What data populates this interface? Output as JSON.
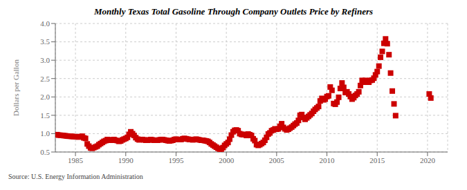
{
  "chart_data": {
    "type": "scatter",
    "title": "Monthly Texas Total Gasoline Through Company Outlets Price by Refiners",
    "y_label": "Dollars per Gallon",
    "annotations": [
      "Source: U.S. Energy Information Administration"
    ],
    "color": "#cc0000",
    "marker": "square",
    "grid": true,
    "xlim": [
      1983,
      2022
    ],
    "ylim": [
      0.5,
      4.0
    ],
    "xticks": [
      1985,
      1990,
      1995,
      2000,
      2005,
      2010,
      2015,
      2020
    ],
    "yticks": [
      0.5,
      {
        "value": 1.0,
        "label": "1.0"
      },
      1.5,
      {
        "value": 2.0,
        "label": "2.0"
      },
      2.5,
      {
        "value": 3.0,
        "label": "3.0"
      },
      3.5,
      {
        "value": 4.0,
        "label": "4.0"
      }
    ],
    "x": [
      1983.17,
      1983.33,
      1983.5,
      1983.67,
      1983.83,
      1984.0,
      1984.17,
      1984.33,
      1984.5,
      1984.67,
      1984.83,
      1985.0,
      1985.17,
      1985.33,
      1985.5,
      1985.67,
      1985.83,
      1986.0,
      1986.17,
      1986.33,
      1986.5,
      1986.67,
      1986.83,
      1987.0,
      1987.17,
      1987.33,
      1987.5,
      1987.67,
      1987.83,
      1988.0,
      1988.17,
      1988.33,
      1988.5,
      1988.67,
      1988.83,
      1989.0,
      1989.17,
      1989.33,
      1989.5,
      1989.67,
      1989.83,
      1990.0,
      1990.17,
      1990.33,
      1990.5,
      1990.67,
      1990.83,
      1991.0,
      1991.17,
      1991.33,
      1991.5,
      1991.67,
      1991.83,
      1992.0,
      1992.17,
      1992.33,
      1992.5,
      1992.67,
      1992.83,
      1993.0,
      1993.17,
      1993.33,
      1993.5,
      1993.67,
      1993.83,
      1994.0,
      1994.17,
      1994.33,
      1994.5,
      1994.67,
      1994.83,
      1995.0,
      1995.17,
      1995.33,
      1995.5,
      1995.67,
      1995.83,
      1996.0,
      1996.17,
      1996.33,
      1996.5,
      1996.67,
      1996.83,
      1997.0,
      1997.17,
      1997.33,
      1997.5,
      1997.67,
      1997.83,
      1998.0,
      1998.17,
      1998.33,
      1998.5,
      1998.67,
      1998.83,
      1999.0,
      1999.17,
      1999.33,
      1999.5,
      1999.67,
      1999.83,
      2000.0,
      2000.17,
      2000.33,
      2000.5,
      2000.67,
      2000.83,
      2001.0,
      2001.17,
      2001.33,
      2001.5,
      2001.67,
      2001.83,
      2002.0,
      2002.17,
      2002.33,
      2002.5,
      2002.67,
      2002.83,
      2003.0,
      2003.17,
      2003.33,
      2003.5,
      2003.67,
      2003.83,
      2004.0,
      2004.17,
      2004.33,
      2004.5,
      2004.67,
      2004.83,
      2005.0,
      2005.17,
      2005.33,
      2005.5,
      2005.67,
      2005.83,
      2006.0,
      2006.17,
      2006.33,
      2006.5,
      2006.67,
      2006.83,
      2007.0,
      2007.17,
      2007.33,
      2007.5,
      2007.67,
      2007.83,
      2008.0,
      2008.17,
      2008.33,
      2008.5,
      2008.67,
      2008.83,
      2009.0,
      2009.17,
      2009.33,
      2009.5,
      2009.67,
      2009.83,
      2010.0,
      2010.17,
      2010.33,
      2010.5,
      2010.67,
      2010.83,
      2011.0,
      2011.17,
      2011.33,
      2011.5,
      2011.67,
      2011.83,
      2012.0,
      2012.17,
      2012.33,
      2012.5,
      2012.67,
      2012.83,
      2013.0,
      2013.17,
      2013.33,
      2013.5,
      2013.67,
      2013.83,
      2014.0,
      2014.17,
      2014.33,
      2014.5,
      2014.67,
      2014.83,
      2015.0,
      2015.17,
      2015.33,
      2015.5,
      2015.67,
      2015.83,
      2016.0,
      2016.17,
      2016.33,
      2016.5,
      2016.67,
      2016.83,
      2020.17,
      2020.33
    ],
    "values": [
      0.972,
      0.96,
      0.956,
      0.953,
      0.947,
      0.942,
      0.935,
      0.93,
      0.928,
      0.924,
      0.92,
      0.916,
      0.912,
      0.908,
      0.92,
      0.93,
      0.885,
      0.87,
      0.72,
      0.66,
      0.61,
      0.6,
      0.62,
      0.64,
      0.66,
      0.7,
      0.73,
      0.76,
      0.79,
      0.81,
      0.84,
      0.83,
      0.82,
      0.83,
      0.84,
      0.82,
      0.81,
      0.79,
      0.8,
      0.83,
      0.85,
      0.87,
      0.9,
      0.98,
      1.05,
      1.0,
      0.95,
      0.89,
      0.85,
      0.83,
      0.84,
      0.84,
      0.83,
      0.82,
      0.82,
      0.83,
      0.84,
      0.83,
      0.82,
      0.82,
      0.82,
      0.83,
      0.84,
      0.84,
      0.83,
      0.82,
      0.81,
      0.8,
      0.81,
      0.82,
      0.84,
      0.85,
      0.84,
      0.84,
      0.84,
      0.86,
      0.87,
      0.86,
      0.85,
      0.84,
      0.84,
      0.83,
      0.84,
      0.85,
      0.84,
      0.83,
      0.82,
      0.82,
      0.81,
      0.8,
      0.79,
      0.76,
      0.72,
      0.69,
      0.66,
      0.63,
      0.6,
      0.58,
      0.58,
      0.62,
      0.68,
      0.72,
      0.76,
      0.85,
      0.96,
      1.05,
      1.09,
      1.1,
      1.08,
      1.0,
      0.98,
      0.97,
      0.98,
      0.95,
      0.99,
      0.97,
      0.95,
      0.86,
      0.81,
      0.7,
      0.68,
      0.7,
      0.73,
      0.76,
      0.82,
      0.9,
      0.99,
      1.02,
      1.08,
      1.1,
      1.13,
      1.12,
      1.13,
      1.2,
      1.27,
      1.17,
      1.13,
      1.1,
      1.12,
      1.15,
      1.18,
      1.22,
      1.26,
      1.29,
      1.36,
      1.5,
      1.52,
      1.44,
      1.39,
      1.43,
      1.47,
      1.51,
      1.55,
      1.61,
      1.66,
      1.7,
      1.74,
      1.89,
      1.96,
      1.92,
      1.94,
      2.01,
      2.03,
      2.27,
      2.18,
      1.82,
      1.8,
      1.86,
      1.99,
      2.23,
      2.38,
      2.26,
      2.12,
      2.14,
      2.08,
      2.01,
      1.94,
      1.98,
      2.04,
      2.08,
      2.14,
      2.31,
      2.45,
      2.4,
      2.45,
      2.42,
      2.4,
      2.45,
      2.46,
      2.51,
      2.6,
      2.69,
      2.84,
      3.08,
      3.24,
      3.46,
      3.58,
      3.45,
      3.15,
      2.65,
      2.16,
      1.81,
      1.49,
      2.08,
      1.97
    ]
  }
}
